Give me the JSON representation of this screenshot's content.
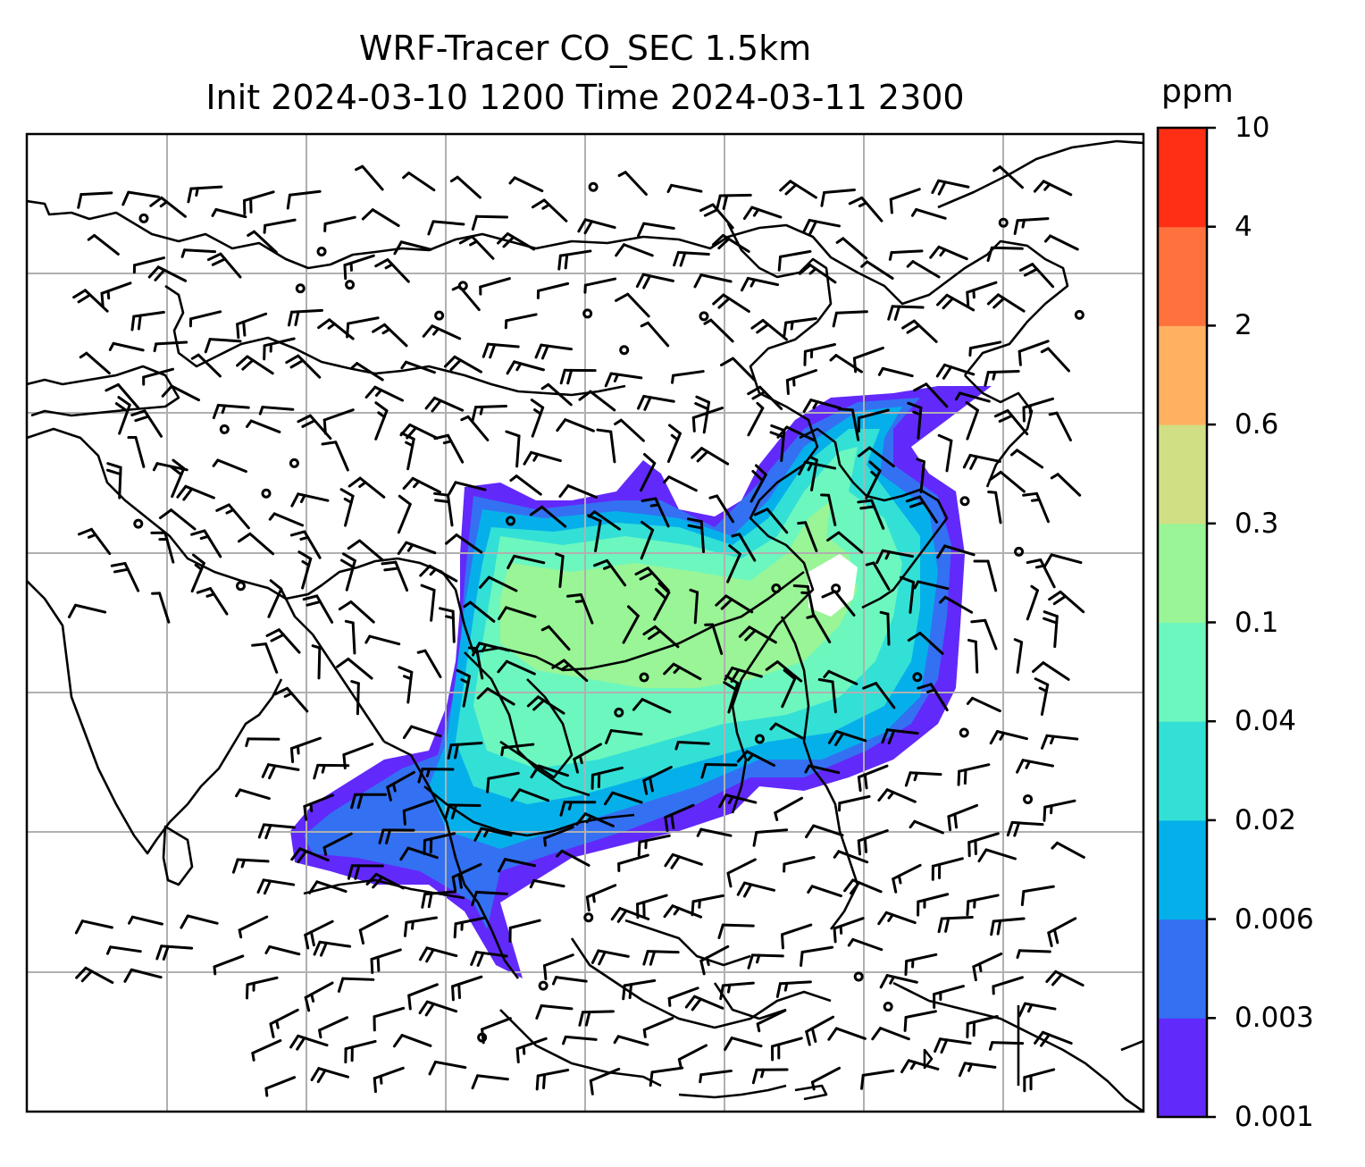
{
  "title_line1": "WRF-Tracer CO_SEC 1.5km",
  "title_line2": "Init 2024-03-10 1200 Time 2024-03-11 2300",
  "colorbar": {
    "unit": "ppm",
    "levels": [
      "0.001",
      "0.003",
      "0.006",
      "0.02",
      "0.04",
      "0.1",
      "0.3",
      "0.6",
      "2",
      "4",
      "10"
    ],
    "colors": [
      "#6229fb",
      "#3371f2",
      "#05b0ea",
      "#33e0d6",
      "#6cf7bf",
      "#99f596",
      "#d1df84",
      "#ffb161",
      "#ff723d",
      "#ff2f16"
    ]
  },
  "map_style": {
    "coastline_color": "#000000",
    "grid_color": "#b0b0b0",
    "wind_barbs": "black"
  }
}
